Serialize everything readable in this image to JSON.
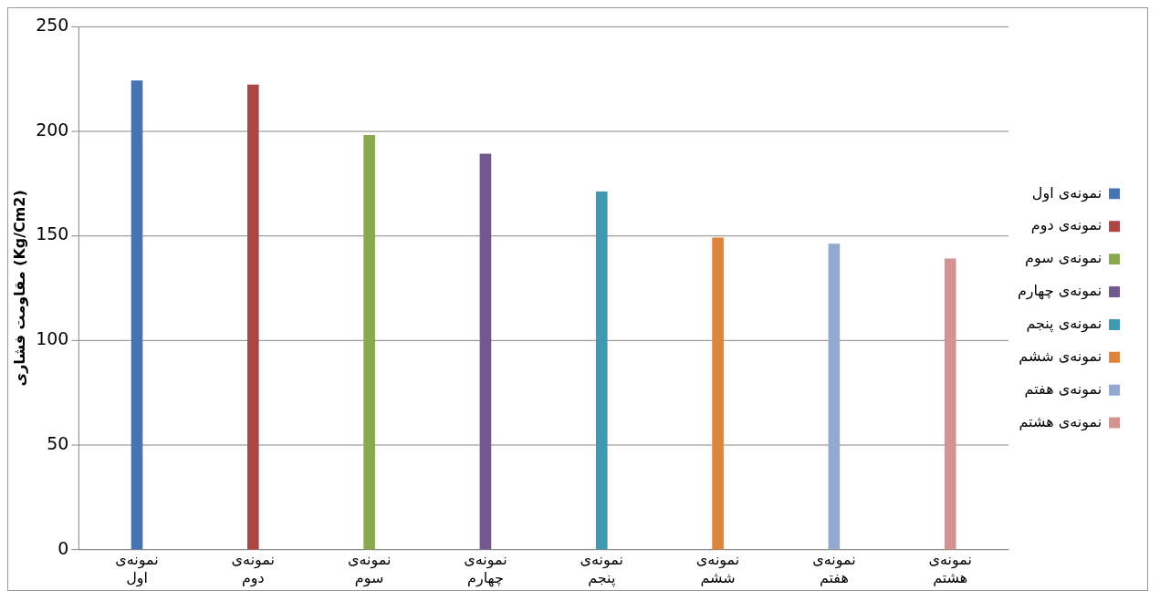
{
  "chart_data": {
    "type": "bar",
    "ylabel": "مقاومت فشاری (Kg/Cm2)",
    "categories": [
      "نمونه‌ی اول",
      "نمونه‌ی دوم",
      "نمونه‌ی سوم",
      "نمونه‌ی چهارم",
      "نمونه‌ی پنجم",
      "نمونه‌ی ششم",
      "نمونه‌ی هفتم",
      "نمونه‌ی هشتم"
    ],
    "series": [
      {
        "name": "نمونه‌ی اول",
        "color": "#4674b0",
        "values": [
          224,
          null,
          null,
          null,
          null,
          null,
          null,
          null
        ]
      },
      {
        "name": "نمونه‌ی دوم",
        "color": "#ab4644",
        "values": [
          null,
          222,
          null,
          null,
          null,
          null,
          null,
          null
        ]
      },
      {
        "name": "نمونه‌ی سوم",
        "color": "#8aa84d",
        "values": [
          null,
          null,
          198,
          null,
          null,
          null,
          null,
          null
        ]
      },
      {
        "name": "نمونه‌ی چهارم",
        "color": "#71598f",
        "values": [
          null,
          null,
          null,
          189,
          null,
          null,
          null,
          null
        ]
      },
      {
        "name": "نمونه‌ی پنجم",
        "color": "#4199b0",
        "values": [
          null,
          null,
          null,
          null,
          171,
          null,
          null,
          null
        ]
      },
      {
        "name": "نمونه‌ی ششم",
        "color": "#dd843d",
        "values": [
          null,
          null,
          null,
          null,
          null,
          149,
          null,
          null
        ]
      },
      {
        "name": "نمونه‌ی هفتم",
        "color": "#93a9d0",
        "values": [
          null,
          null,
          null,
          null,
          null,
          null,
          146,
          null
        ]
      },
      {
        "name": "نمونه‌ی هشتم",
        "color": "#d39392",
        "values": [
          null,
          null,
          null,
          null,
          null,
          null,
          null,
          139
        ]
      }
    ],
    "ylim": [
      0,
      250
    ],
    "yticks": [
      0,
      50,
      100,
      150,
      200,
      250
    ],
    "grid": "y",
    "legend": "right"
  }
}
